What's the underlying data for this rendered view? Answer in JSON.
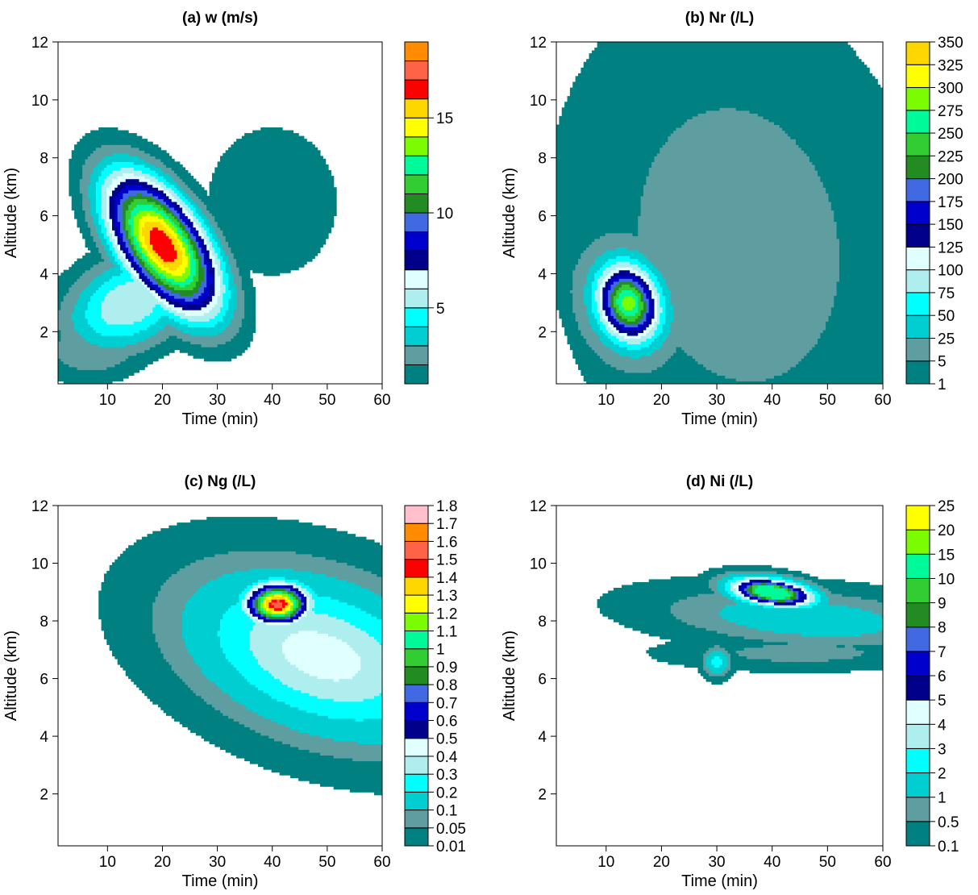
{
  "chart_data": [
    {
      "type": "contour",
      "title": "(a) w (m/s)",
      "xlabel": "Time (min)",
      "ylabel": "Altitude (km)",
      "xlim": [
        1,
        60
      ],
      "ylim": [
        0.2,
        12
      ],
      "xticks": [
        10,
        20,
        30,
        40,
        50,
        60
      ],
      "yticks": [
        2,
        4,
        6,
        8,
        10,
        12
      ],
      "colorbar": {
        "levels": [
          1,
          2,
          3,
          4,
          5,
          6,
          7,
          8,
          9,
          10,
          11,
          12,
          13,
          14,
          15,
          16,
          17,
          18,
          19
        ],
        "labels": [
          "",
          "",
          "",
          "",
          "5",
          "",
          "",
          "",
          "",
          "10",
          "",
          "",
          "",
          "",
          "15",
          "",
          "",
          ""
        ],
        "colors": [
          "#008080",
          "#5f9ea0",
          "#00ced1",
          "#00ffff",
          "#afeeee",
          "#e0ffff",
          "#00008b",
          "#0000cd",
          "#4169e1",
          "#228b22",
          "#32cd32",
          "#00fa9a",
          "#7cfc00",
          "#ffff00",
          "#ffd700",
          "#ff0000",
          "#ff6347",
          "#ff8c00"
        ]
      },
      "blobs": [
        {
          "center": [
            20,
            5.0
          ],
          "peak": 17,
          "sx": 4.5,
          "sy": 2.2,
          "rot": 48
        },
        {
          "center": [
            14,
            3.0
          ],
          "peak": 6,
          "sx": 9,
          "sy": 1.2,
          "rot": 15
        },
        {
          "center": [
            40,
            6.5
          ],
          "peak": 1.3,
          "sx": 16,
          "sy": 3.5,
          "rot": 0
        },
        {
          "center": [
            8,
            1.5
          ],
          "peak": 3,
          "sx": 8,
          "sy": 0.9,
          "rot": 5
        }
      ]
    },
    {
      "type": "contour",
      "title": "(b) Nr (/L)",
      "xlabel": "Time (min)",
      "ylabel": "Altitude (km)",
      "xlim": [
        1,
        60
      ],
      "ylim": [
        0.2,
        12
      ],
      "xticks": [
        10,
        20,
        30,
        40,
        50,
        60
      ],
      "yticks": [
        2,
        4,
        6,
        8,
        10,
        12
      ],
      "colorbar": {
        "levels": [
          1,
          5,
          25,
          50,
          75,
          100,
          125,
          150,
          175,
          200,
          225,
          250,
          275,
          300,
          325,
          350,
          375
        ],
        "labels": [
          "1",
          "5",
          "25",
          "50",
          "75",
          "100",
          "125",
          "150",
          "175",
          "200",
          "225",
          "250",
          "275",
          "300",
          "325",
          "350"
        ],
        "colors": [
          "#008080",
          "#5f9ea0",
          "#00ced1",
          "#00ffff",
          "#afeeee",
          "#e0ffff",
          "#00008b",
          "#0000cd",
          "#4169e1",
          "#228b22",
          "#32cd32",
          "#00fa9a",
          "#7cfc00",
          "#ffff00",
          "#ffd700"
        ]
      },
      "blobs": [
        {
          "center": [
            14,
            3.0
          ],
          "peak": 290,
          "sx": 3.2,
          "sy": 0.95,
          "rot": 55
        },
        {
          "center": [
            34,
            5.0
          ],
          "peak": 9,
          "sx": 16,
          "sy": 4.5,
          "rot": 35
        },
        {
          "center": [
            45,
            3.5
          ],
          "peak": 4,
          "sx": 13,
          "sy": 3.0,
          "rot": 0
        }
      ]
    },
    {
      "type": "contour",
      "title": "(c) Ng (/L)",
      "xlabel": "Time (min)",
      "ylabel": "Altitude (km)",
      "xlim": [
        1,
        60
      ],
      "ylim": [
        0.2,
        12
      ],
      "xticks": [
        10,
        20,
        30,
        40,
        50,
        60
      ],
      "yticks": [
        2,
        4,
        6,
        8,
        10,
        12
      ],
      "colorbar": {
        "levels": [
          0.01,
          0.05,
          0.1,
          0.2,
          0.3,
          0.4,
          0.5,
          0.6,
          0.7,
          0.8,
          0.9,
          1,
          1.1,
          1.2,
          1.3,
          1.4,
          1.5,
          1.6,
          1.7,
          1.8
        ],
        "labels": [
          "0.01",
          "0.05",
          "0.1",
          "0.2",
          "0.3",
          "0.4",
          "0.5",
          "0.6",
          "0.7",
          "0.8",
          "0.9",
          "1",
          "1.1",
          "1.2",
          "1.3",
          "1.4",
          "1.5",
          "1.6",
          "1.7",
          "1.8"
        ],
        "colors": [
          "#008080",
          "#5f9ea0",
          "#00ced1",
          "#00ffff",
          "#afeeee",
          "#e0ffff",
          "#00008b",
          "#0000cd",
          "#4169e1",
          "#228b22",
          "#32cd32",
          "#00fa9a",
          "#7cfc00",
          "#ffff00",
          "#ffd700",
          "#ff0000",
          "#ff6347",
          "#ff8c00",
          "#ffc0cb"
        ]
      },
      "blobs": [
        {
          "center": [
            41,
            8.6
          ],
          "peak": 1.55,
          "sx": 3.6,
          "sy": 0.45,
          "rot": 0
        },
        {
          "center": [
            49,
            6.8
          ],
          "peak": 0.45,
          "sx": 15,
          "sy": 1.6,
          "rot": -12
        }
      ]
    },
    {
      "type": "contour",
      "title": "(d) Ni (/L)",
      "xlabel": "Time (min)",
      "ylabel": "Altitude (km)",
      "xlim": [
        1,
        60
      ],
      "ylim": [
        0.2,
        12
      ],
      "xticks": [
        10,
        20,
        30,
        40,
        50,
        60
      ],
      "yticks": [
        2,
        4,
        6,
        8,
        10,
        12
      ],
      "colorbar": {
        "levels": [
          0.1,
          0.5,
          1,
          2,
          3,
          4,
          5,
          6,
          7,
          8,
          9,
          10,
          15,
          20,
          25
        ],
        "labels": [
          "0.1",
          "0.5",
          "1",
          "2",
          "3",
          "4",
          "5",
          "6",
          "7",
          "8",
          "9",
          "10",
          "15",
          "20",
          "25"
        ],
        "colors": [
          "#008080",
          "#5f9ea0",
          "#00ced1",
          "#00ffff",
          "#afeeee",
          "#e0ffff",
          "#00008b",
          "#0000cd",
          "#4169e1",
          "#228b22",
          "#32cd32",
          "#00fa9a",
          "#7cfc00",
          "#ffff00"
        ]
      },
      "blobs": [
        {
          "center": [
            40,
            9.0
          ],
          "peak": 13,
          "sx": 4.5,
          "sy": 0.28,
          "rot": -6
        },
        {
          "center": [
            46,
            8.1
          ],
          "peak": 1.6,
          "sx": 16,
          "sy": 0.6,
          "rot": -3
        },
        {
          "center": [
            45,
            6.9
          ],
          "peak": 0.7,
          "sx": 14,
          "sy": 0.35,
          "rot": 0
        },
        {
          "center": [
            30,
            6.6
          ],
          "peak": 2.5,
          "sx": 1.5,
          "sy": 0.3,
          "rot": 0
        }
      ]
    }
  ]
}
